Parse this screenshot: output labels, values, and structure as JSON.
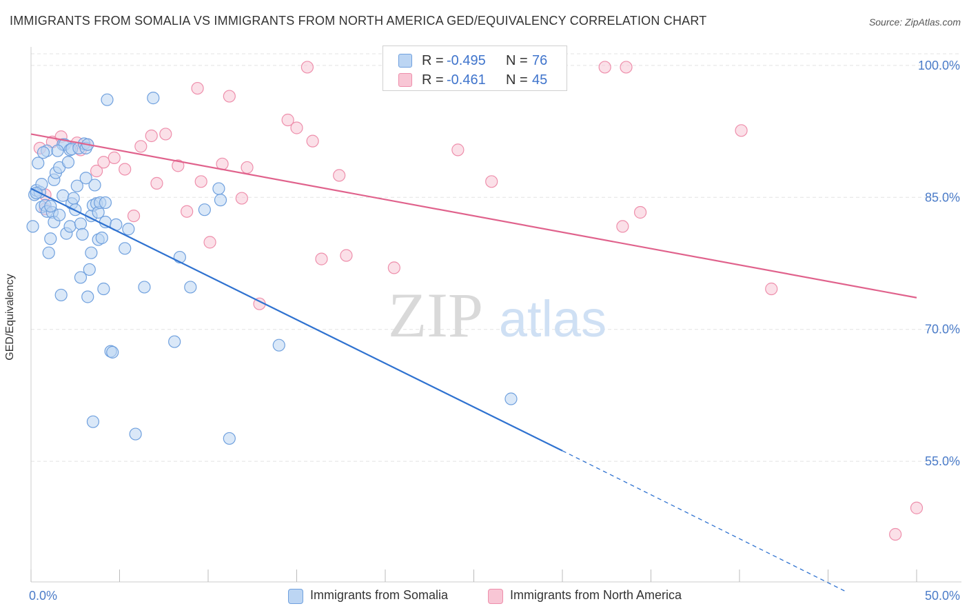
{
  "header": {
    "title": "IMMIGRANTS FROM SOMALIA VS IMMIGRANTS FROM NORTH AMERICA GED/EQUIVALENCY CORRELATION CHART",
    "source": "Source: ZipAtlas.com"
  },
  "watermark": {
    "zip": "ZIP",
    "atlas": "atlas"
  },
  "stats": [
    {
      "r_label": "R =",
      "r_value": "-0.495",
      "n_label": "N =",
      "n_value": "76",
      "color": "#6fa0de"
    },
    {
      "r_label": "R =",
      "r_value": "-0.461",
      "n_label": "N =",
      "n_value": "45",
      "color": "#ee8eab"
    }
  ],
  "colors": {
    "blue_fill": "#bcd5f3",
    "blue_stroke": "#6fa0de",
    "blue_line": "#2f72d0",
    "pink_fill": "#f8c6d5",
    "pink_stroke": "#ee8eab",
    "pink_line": "#e0628c",
    "tick_text": "#4a7bc8",
    "grid": "#e3e3e3"
  },
  "chart_data": {
    "type": "scatter",
    "title": "IMMIGRANTS FROM SOMALIA VS IMMIGRANTS FROM NORTH AMERICA GED/EQUIVALENCY CORRELATION CHART",
    "xlabel": "",
    "ylabel": "GED/Equivalency",
    "xlim": [
      0,
      50
    ],
    "ylim": [
      40,
      102.5
    ],
    "x_tick_labels": [
      "0.0%",
      "50.0%"
    ],
    "y_ticks": [
      55,
      70,
      85,
      100
    ],
    "y_tick_labels": [
      "55.0%",
      "70.0%",
      "85.0%",
      "100.0%"
    ],
    "grid": true,
    "legend_position": "bottom",
    "series": [
      {
        "name": "Immigrants from Somalia",
        "color": "#6fa0de",
        "trend": {
          "x": [
            0,
            30
          ],
          "y": [
            86.0,
            56.2
          ],
          "dashed_to": {
            "x": 46,
            "y": 40.2
          }
        },
        "points": [
          [
            0.1,
            81.7
          ],
          [
            0.2,
            85.3
          ],
          [
            0.3,
            85.8
          ],
          [
            0.4,
            88.9
          ],
          [
            0.5,
            85.6
          ],
          [
            0.6,
            83.9
          ],
          [
            0.6,
            86.5
          ],
          [
            0.8,
            84.1
          ],
          [
            0.9,
            90.3
          ],
          [
            0.9,
            83.4
          ],
          [
            1.0,
            78.7
          ],
          [
            1.1,
            80.3
          ],
          [
            1.2,
            83.3
          ],
          [
            1.3,
            82.2
          ],
          [
            1.3,
            87.0
          ],
          [
            1.4,
            87.8
          ],
          [
            1.6,
            83.0
          ],
          [
            1.6,
            88.4
          ],
          [
            1.7,
            73.9
          ],
          [
            1.8,
            91.0
          ],
          [
            1.8,
            85.2
          ],
          [
            1.9,
            91.0
          ],
          [
            2.0,
            80.9
          ],
          [
            2.1,
            89.0
          ],
          [
            2.2,
            81.7
          ],
          [
            2.2,
            90.4
          ],
          [
            2.3,
            90.5
          ],
          [
            2.3,
            84.3
          ],
          [
            2.4,
            84.9
          ],
          [
            2.6,
            86.3
          ],
          [
            2.7,
            90.6
          ],
          [
            2.8,
            75.9
          ],
          [
            2.8,
            82.0
          ],
          [
            2.9,
            80.8
          ],
          [
            3.0,
            91.1
          ],
          [
            3.1,
            90.6
          ],
          [
            3.1,
            87.2
          ],
          [
            3.2,
            73.7
          ],
          [
            3.3,
            76.8
          ],
          [
            3.4,
            78.7
          ],
          [
            3.4,
            82.9
          ],
          [
            3.5,
            84.1
          ],
          [
            3.5,
            59.5
          ],
          [
            3.6,
            86.4
          ],
          [
            3.7,
            84.3
          ],
          [
            3.8,
            80.2
          ],
          [
            3.8,
            83.3
          ],
          [
            3.9,
            84.4
          ],
          [
            4.0,
            80.4
          ],
          [
            4.1,
            74.6
          ],
          [
            4.2,
            84.4
          ],
          [
            4.2,
            82.2
          ],
          [
            4.3,
            96.1
          ],
          [
            4.5,
            67.5
          ],
          [
            4.6,
            67.4
          ],
          [
            4.8,
            81.9
          ],
          [
            5.3,
            79.2
          ],
          [
            5.5,
            81.4
          ],
          [
            5.9,
            58.1
          ],
          [
            6.4,
            74.8
          ],
          [
            6.9,
            96.3
          ],
          [
            8.1,
            68.6
          ],
          [
            8.4,
            78.2
          ],
          [
            9.0,
            74.8
          ],
          [
            9.8,
            83.6
          ],
          [
            10.6,
            86.0
          ],
          [
            10.7,
            84.7
          ],
          [
            11.2,
            57.6
          ],
          [
            14.0,
            68.2
          ],
          [
            27.1,
            62.1
          ],
          [
            0.3,
            85.5
          ],
          [
            1.5,
            90.3
          ],
          [
            2.5,
            83.6
          ],
          [
            3.2,
            91.0
          ],
          [
            1.1,
            84.0
          ],
          [
            0.7,
            90.1
          ]
        ]
      },
      {
        "name": "Immigrants from North America",
        "color": "#ee8eab",
        "trend": {
          "x": [
            0,
            50
          ],
          "y": [
            92.2,
            73.6
          ]
        },
        "points": [
          [
            0.5,
            90.6
          ],
          [
            0.8,
            85.3
          ],
          [
            0.8,
            83.7
          ],
          [
            1.2,
            91.3
          ],
          [
            1.7,
            91.9
          ],
          [
            2.6,
            91.2
          ],
          [
            2.8,
            90.4
          ],
          [
            3.2,
            91.0
          ],
          [
            3.7,
            88.0
          ],
          [
            4.1,
            89.0
          ],
          [
            4.7,
            89.5
          ],
          [
            5.3,
            88.2
          ],
          [
            5.8,
            82.9
          ],
          [
            6.2,
            90.8
          ],
          [
            6.8,
            92.0
          ],
          [
            7.1,
            86.6
          ],
          [
            7.6,
            92.2
          ],
          [
            8.3,
            88.6
          ],
          [
            8.8,
            83.4
          ],
          [
            9.4,
            97.4
          ],
          [
            9.6,
            86.8
          ],
          [
            10.1,
            79.9
          ],
          [
            10.8,
            88.8
          ],
          [
            11.2,
            96.5
          ],
          [
            11.9,
            84.9
          ],
          [
            12.2,
            88.4
          ],
          [
            12.9,
            72.9
          ],
          [
            14.5,
            93.8
          ],
          [
            15.0,
            92.9
          ],
          [
            15.6,
            99.8
          ],
          [
            15.9,
            91.4
          ],
          [
            16.4,
            78.0
          ],
          [
            17.4,
            87.5
          ],
          [
            17.8,
            78.4
          ],
          [
            20.5,
            77.0
          ],
          [
            24.1,
            90.4
          ],
          [
            26.0,
            86.8
          ],
          [
            32.4,
            99.8
          ],
          [
            33.6,
            99.8
          ],
          [
            33.4,
            81.7
          ],
          [
            34.4,
            83.3
          ],
          [
            40.1,
            92.6
          ],
          [
            41.8,
            74.6
          ],
          [
            48.8,
            46.7
          ],
          [
            50.0,
            49.7
          ]
        ]
      }
    ]
  }
}
